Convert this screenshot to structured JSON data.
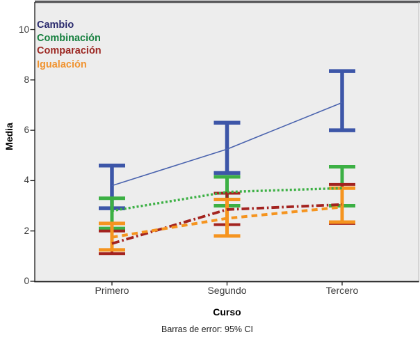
{
  "chart_data": {
    "type": "line",
    "title": "",
    "xlabel": "Curso",
    "ylabel": "Media",
    "footnote": "Barras de error: 95% CI",
    "categories": [
      "Primero",
      "Segundo",
      "Tercero"
    ],
    "ylim": [
      0,
      10
    ],
    "yticks": [
      0,
      2,
      4,
      6,
      8,
      10
    ],
    "grid": false,
    "legend_position": "top-left-inside",
    "plot_background": "#EDEDED",
    "frame_top_color": "#59595B",
    "frame_right_color": "#B3B3B3",
    "axis_color": "#1A1A1A",
    "error_bar_meaning": "95% CI",
    "series": [
      {
        "name": "Cambio",
        "label_color": "#2B2B6E",
        "color": "#4A63AE",
        "bar_color": "#3D56A8",
        "line_style": "solid",
        "means": [
          3.8,
          5.25,
          7.1
        ],
        "ci_low": [
          2.9,
          4.3,
          6.0
        ],
        "ci_high": [
          4.6,
          6.3,
          8.35
        ]
      },
      {
        "name": "Combinación",
        "label_color": "#17803F",
        "color": "#3CB044",
        "bar_color": "#3CB044",
        "line_style": "dotted",
        "means": [
          2.8,
          3.55,
          3.7
        ],
        "ci_low": [
          2.1,
          3.0,
          3.0
        ],
        "ci_high": [
          3.3,
          4.15,
          4.55
        ]
      },
      {
        "name": "Comparación",
        "label_color": "#9C2823",
        "color": "#A3231F",
        "bar_color": "#A3231F",
        "line_style": "dashdot",
        "means": [
          1.5,
          2.85,
          3.05
        ],
        "ci_low": [
          1.1,
          2.25,
          2.3
        ],
        "ci_high": [
          2.0,
          3.5,
          3.85
        ]
      },
      {
        "name": "Igualación",
        "label_color": "#F09330",
        "color": "#F5941F",
        "bar_color": "#F5941F",
        "line_style": "dashed",
        "means": [
          1.75,
          2.5,
          2.95
        ],
        "ci_low": [
          1.25,
          1.8,
          2.35
        ],
        "ci_high": [
          2.3,
          3.25,
          3.7
        ]
      }
    ]
  }
}
